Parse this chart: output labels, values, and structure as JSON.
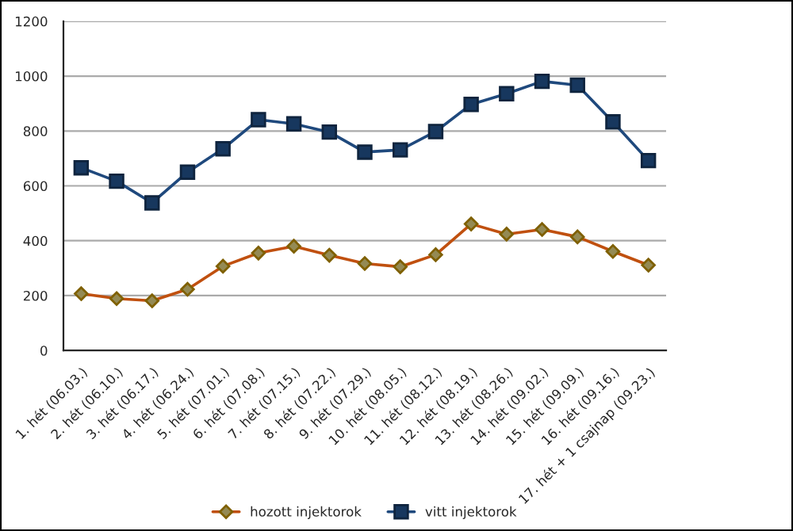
{
  "chart_data": {
    "type": "line",
    "categories": [
      "1. hét (06.03.)",
      "2. hét (06.10.)",
      "3. hét (06.17.)",
      "4. hét (06.24.)",
      "5. hét (07.01.)",
      "6. hét (07.08.)",
      "7. hét (07.15.)",
      "8. hét (07.22.)",
      "9. hét (07.29.)",
      "10. hét (08.05.)",
      "11. hét (08.12.)",
      "12. hét (08.19.)",
      "13. hét (08.26.)",
      "14. hét (09.02.)",
      "15. hét (09.09.)",
      "16. hét (09.16.)",
      "17. hét + 1 csajnap (09.23.)"
    ],
    "series": [
      {
        "name": "hozott injektorok",
        "color": "#c0500f",
        "marker": "diamond",
        "values": [
          207,
          189,
          181,
          223,
          307,
          355,
          380,
          347,
          317,
          305,
          349,
          461,
          424,
          441,
          414,
          361,
          311
        ]
      },
      {
        "name": "vitt injektorok",
        "color": "#1f497d",
        "marker": "square",
        "values": [
          666,
          617,
          538,
          650,
          735,
          841,
          826,
          796,
          723,
          731,
          798,
          897,
          936,
          981,
          967,
          833,
          692
        ]
      }
    ],
    "ylim": [
      0,
      1200
    ],
    "yticks": [
      0,
      200,
      400,
      600,
      800,
      1000,
      1200
    ],
    "grid": "y",
    "legend": "bottom"
  }
}
